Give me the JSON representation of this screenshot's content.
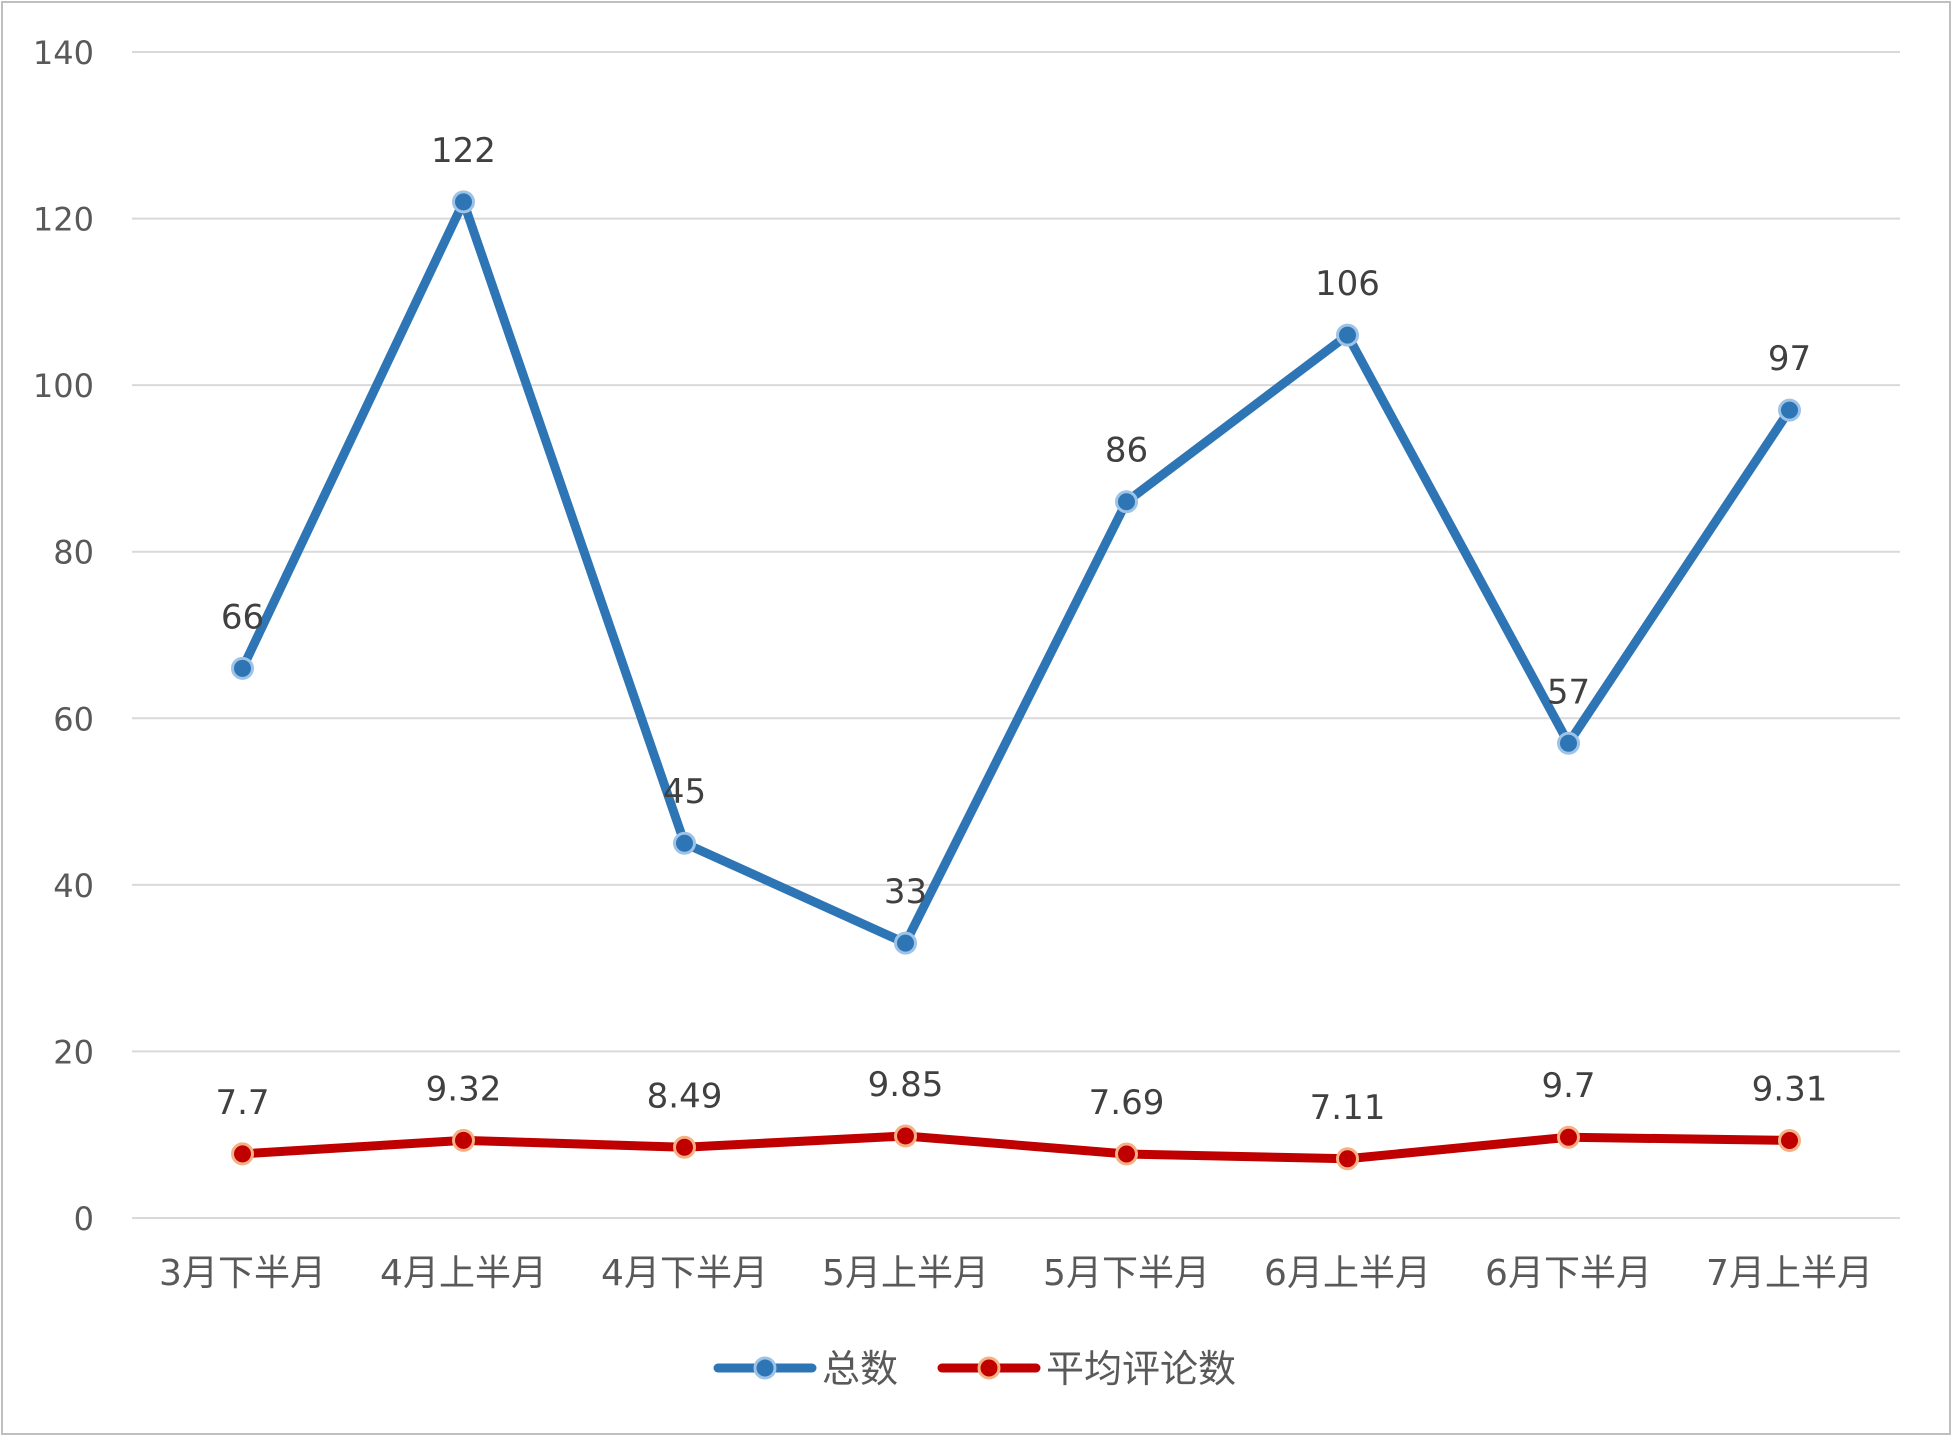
{
  "chart_data": {
    "type": "line",
    "title": "",
    "xlabel": "",
    "ylabel": "",
    "categories": [
      "3月下半月",
      "4月上半月",
      "4月下半月",
      "5月上半月",
      "5月下半月",
      "6月上半月",
      "6月下半月",
      "7月上半月"
    ],
    "ylim": [
      0,
      140
    ],
    "yticks": [
      0,
      20,
      40,
      60,
      80,
      100,
      120,
      140
    ],
    "grid": true,
    "legend_position": "bottom-center",
    "series": [
      {
        "name": "总数",
        "values": [
          66,
          122,
          45,
          33,
          86,
          106,
          57,
          97
        ],
        "data_labels": [
          "66",
          "122",
          "45",
          "33",
          "86",
          "106",
          "57",
          "97"
        ],
        "color": "#2E75B6",
        "marker_fill": "#2E75B6",
        "marker_stroke": "#9DC3E6"
      },
      {
        "name": "平均评论数",
        "values": [
          7.7,
          9.32,
          8.49,
          9.85,
          7.69,
          7.11,
          9.7,
          9.31
        ],
        "data_labels": [
          "7.7",
          "9.32",
          "8.49",
          "9.85",
          "7.69",
          "7.11",
          "9.7",
          "9.31"
        ],
        "color": "#C00000",
        "marker_fill": "#C00000",
        "marker_stroke": "#F4B183"
      }
    ],
    "colors": {
      "grid": "#D9D9D9",
      "axis_text": "#595959",
      "label_text": "#404040",
      "border": "#BFBFBF"
    }
  }
}
